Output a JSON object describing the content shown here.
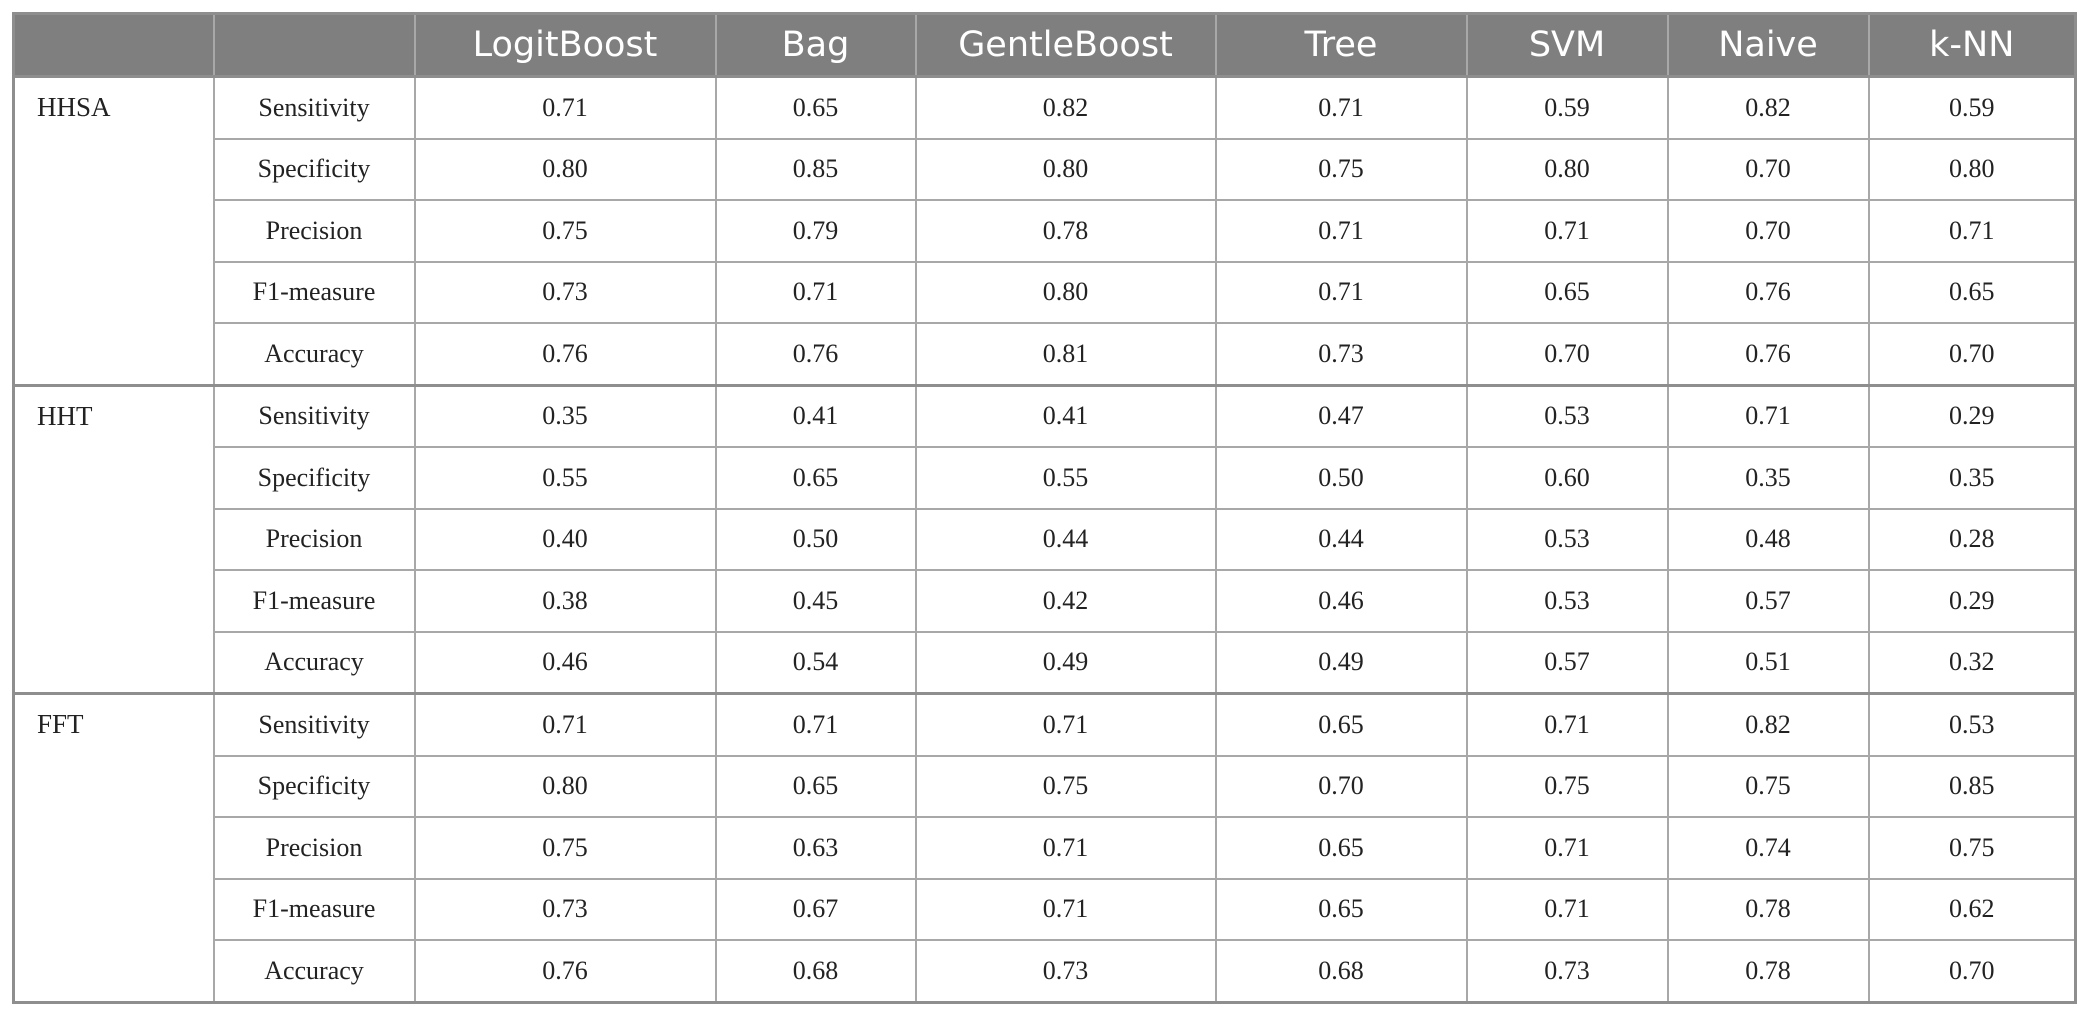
{
  "table": {
    "headers": [
      "",
      "",
      "LogitBoost",
      "Bag",
      "GentleBoost",
      "Tree",
      "SVM",
      "Naive",
      "k-NN"
    ],
    "groups": [
      {
        "name": "HHSA",
        "rows": [
          {
            "metric": "Sensitivity",
            "values": [
              "0.71",
              "0.65",
              "0.82",
              "0.71",
              "0.59",
              "0.82",
              "0.59"
            ]
          },
          {
            "metric": "Specificity",
            "values": [
              "0.80",
              "0.85",
              "0.80",
              "0.75",
              "0.80",
              "0.70",
              "0.80"
            ]
          },
          {
            "metric": "Precision",
            "values": [
              "0.75",
              "0.79",
              "0.78",
              "0.71",
              "0.71",
              "0.70",
              "0.71"
            ]
          },
          {
            "metric": "F1-measure",
            "values": [
              "0.73",
              "0.71",
              "0.80",
              "0.71",
              "0.65",
              "0.76",
              "0.65"
            ]
          },
          {
            "metric": "Accuracy",
            "values": [
              "0.76",
              "0.76",
              "0.81",
              "0.73",
              "0.70",
              "0.76",
              "0.70"
            ]
          }
        ]
      },
      {
        "name": "HHT",
        "rows": [
          {
            "metric": "Sensitivity",
            "values": [
              "0.35",
              "0.41",
              "0.41",
              "0.47",
              "0.53",
              "0.71",
              "0.29"
            ]
          },
          {
            "metric": "Specificity",
            "values": [
              "0.55",
              "0.65",
              "0.55",
              "0.50",
              "0.60",
              "0.35",
              "0.35"
            ]
          },
          {
            "metric": "Precision",
            "values": [
              "0.40",
              "0.50",
              "0.44",
              "0.44",
              "0.53",
              "0.48",
              "0.28"
            ]
          },
          {
            "metric": "F1-measure",
            "values": [
              "0.38",
              "0.45",
              "0.42",
              "0.46",
              "0.53",
              "0.57",
              "0.29"
            ]
          },
          {
            "metric": "Accuracy",
            "values": [
              "0.46",
              "0.54",
              "0.49",
              "0.49",
              "0.57",
              "0.51",
              "0.32"
            ]
          }
        ]
      },
      {
        "name": "FFT",
        "rows": [
          {
            "metric": "Sensitivity",
            "values": [
              "0.71",
              "0.71",
              "0.71",
              "0.65",
              "0.71",
              "0.82",
              "0.53"
            ]
          },
          {
            "metric": "Specificity",
            "values": [
              "0.80",
              "0.65",
              "0.75",
              "0.70",
              "0.75",
              "0.75",
              "0.85"
            ]
          },
          {
            "metric": "Precision",
            "values": [
              "0.75",
              "0.63",
              "0.71",
              "0.65",
              "0.71",
              "0.74",
              "0.75"
            ]
          },
          {
            "metric": "F1-measure",
            "values": [
              "0.73",
              "0.67",
              "0.71",
              "0.65",
              "0.71",
              "0.78",
              "0.62"
            ]
          },
          {
            "metric": "Accuracy",
            "values": [
              "0.76",
              "0.68",
              "0.73",
              "0.68",
              "0.73",
              "0.78",
              "0.70"
            ]
          }
        ]
      }
    ]
  }
}
